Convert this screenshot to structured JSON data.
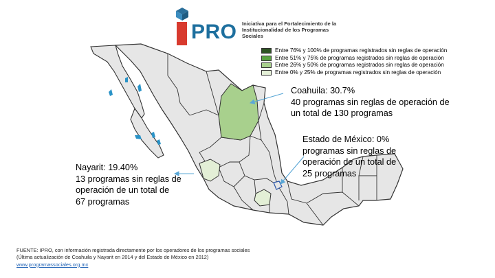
{
  "logo": {
    "wordmark": "PRO",
    "tagline": "Iniciativa para el Fortalecimiento de la Institucionalidad de los Programas Sociales"
  },
  "legend": [
    {
      "label": "Entre 76% y 100% de programas registrados sin reglas de operación",
      "color": "#2e5424"
    },
    {
      "label": "Entre 51% y 75% de programas registrados sin reglas de operación",
      "color": "#5aa342"
    },
    {
      "label": "Entre 26% y 50% de programas registrados sin reglas de operación",
      "color": "#a8d08d"
    },
    {
      "label": "Entre 0% y 25% de programas registrados sin reglas de operación",
      "color": "#e3efd6"
    }
  ],
  "callouts": {
    "coahuila": {
      "head": "Coahuila: 30.7%",
      "line2": "40 programas sin reglas de operación de",
      "line3": "un total de 130 programas"
    },
    "edomex": {
      "head": "Estado de México: 0%",
      "line2": "programas sin reglas de",
      "line3": "operación de un total de",
      "line4": "25 programas"
    },
    "nayarit": {
      "head": "Nayarit: 19.40%",
      "line2": "13 programas sin reglas de",
      "line3": "operación de un total de",
      "line4": "67 programas"
    }
  },
  "source": {
    "text": "FUENTE: IPRO, con información registrada directamente por los operadores de los programas sociales (Última actualización de Coahuila y Nayarit en 2014 y del Estado de México en 2012) ",
    "link": "www.programassociales.org.mx"
  },
  "colors": {
    "state_fill": "#e6e6e6",
    "border": "#333333",
    "arrow": "#5aa7d6",
    "logo_blue": "#1d6f9e",
    "logo_red": "#d83a2e"
  }
}
